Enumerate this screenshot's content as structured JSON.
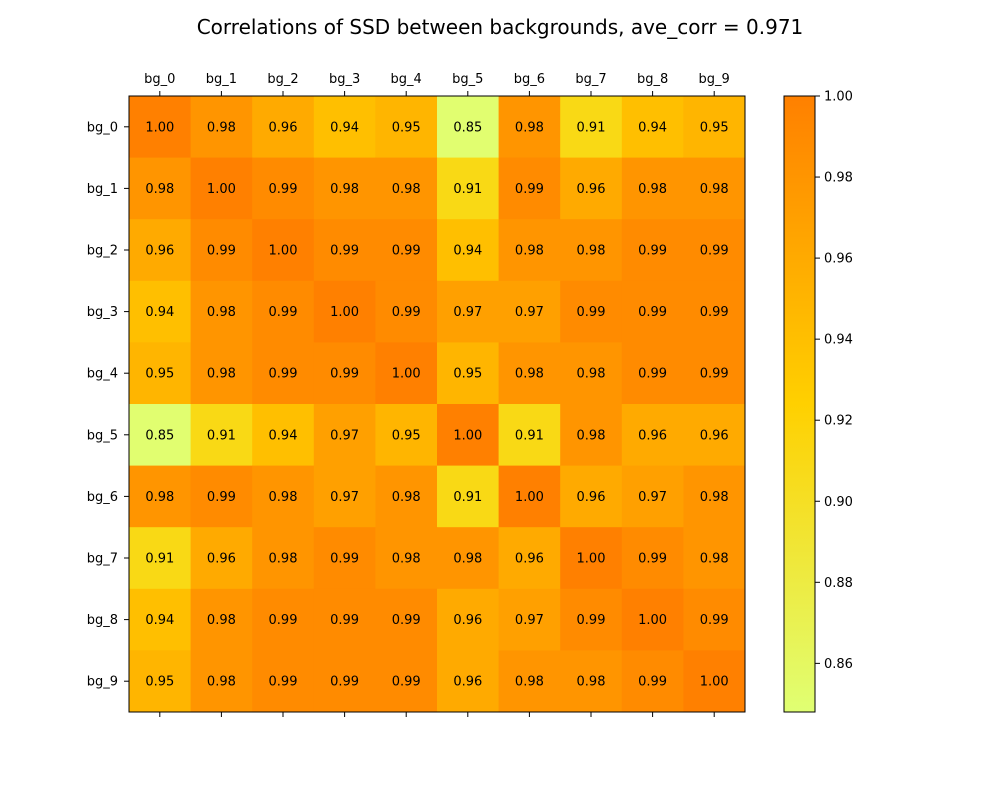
{
  "chart_data": {
    "type": "heatmap",
    "title": "Correlations of SSD between backgrounds, ave_corr = 0.971",
    "xlabel": "",
    "ylabel": "",
    "x_categories": [
      "bg_0",
      "bg_1",
      "bg_2",
      "bg_3",
      "bg_4",
      "bg_5",
      "bg_6",
      "bg_7",
      "bg_8",
      "bg_9"
    ],
    "y_categories": [
      "bg_0",
      "bg_1",
      "bg_2",
      "bg_3",
      "bg_4",
      "bg_5",
      "bg_6",
      "bg_7",
      "bg_8",
      "bg_9"
    ],
    "values": [
      [
        1.0,
        0.98,
        0.96,
        0.94,
        0.95,
        0.85,
        0.98,
        0.91,
        0.94,
        0.95
      ],
      [
        0.98,
        1.0,
        0.99,
        0.98,
        0.98,
        0.91,
        0.99,
        0.96,
        0.98,
        0.98
      ],
      [
        0.96,
        0.99,
        1.0,
        0.99,
        0.99,
        0.94,
        0.98,
        0.98,
        0.99,
        0.99
      ],
      [
        0.94,
        0.98,
        0.99,
        1.0,
        0.99,
        0.97,
        0.97,
        0.99,
        0.99,
        0.99
      ],
      [
        0.95,
        0.98,
        0.99,
        0.99,
        1.0,
        0.95,
        0.98,
        0.98,
        0.99,
        0.99
      ],
      [
        0.85,
        0.91,
        0.94,
        0.97,
        0.95,
        1.0,
        0.91,
        0.98,
        0.96,
        0.96
      ],
      [
        0.98,
        0.99,
        0.98,
        0.97,
        0.98,
        0.91,
        1.0,
        0.96,
        0.97,
        0.98
      ],
      [
        0.91,
        0.96,
        0.98,
        0.99,
        0.98,
        0.98,
        0.96,
        1.0,
        0.99,
        0.98
      ],
      [
        0.94,
        0.98,
        0.99,
        0.99,
        0.99,
        0.96,
        0.97,
        0.99,
        1.0,
        0.99
      ],
      [
        0.95,
        0.98,
        0.99,
        0.99,
        0.99,
        0.96,
        0.98,
        0.98,
        0.99,
        1.0
      ]
    ],
    "value_format": "0.00",
    "colorbar": {
      "range": [
        0.848,
        1.0
      ],
      "ticks": [
        "0.86",
        "0.88",
        "0.90",
        "0.92",
        "0.94",
        "0.96",
        "0.98",
        "1.00"
      ],
      "colors": [
        "#e0ff73",
        "#ffd000",
        "#ff8000"
      ]
    },
    "x_tick_position": "top",
    "grid": false
  }
}
